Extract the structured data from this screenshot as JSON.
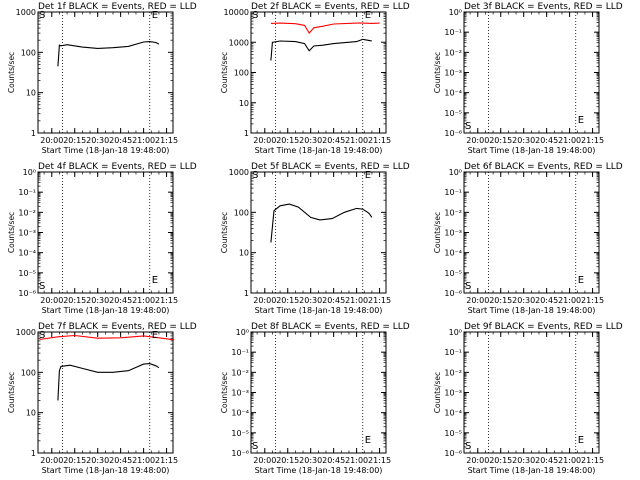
{
  "panel_layout": "3x3",
  "chart_data": [
    {
      "type": "line",
      "title": "Det 1f BLACK = Events, RED = LLD",
      "ylabel": "Counts/sec",
      "xlabel": "Start Time (18-Jan-18 19:48:00)",
      "yscale": "log",
      "ylim": [
        1,
        1000
      ],
      "xlim": [
        19.85,
        21.32
      ],
      "x_ticks": [
        "20:00",
        "20:15",
        "20:30",
        "20:45",
        "21:00",
        "21:15"
      ],
      "y_ticks": [
        "1",
        "10",
        "100",
        "1000"
      ],
      "grid": false,
      "vlines_dotted": [
        "20:07",
        "21:04"
      ],
      "markers": [
        "S",
        "E"
      ],
      "series": [
        {
          "color": "#000000",
          "x": [
            "20:04",
            "20:05",
            "20:06",
            "20:10",
            "20:20",
            "20:30",
            "20:40",
            "20:50",
            "21:00",
            "21:04",
            "21:08",
            "21:10"
          ],
          "y": [
            45,
            150,
            145,
            155,
            135,
            125,
            130,
            140,
            180,
            185,
            175,
            160
          ]
        }
      ]
    },
    {
      "type": "line",
      "title": "Det 2f BLACK = Events, RED = LLD",
      "ylabel": "Counts/sec",
      "xlabel": "Start Time (18-Jan-18 19:48:00)",
      "yscale": "log",
      "ylim": [
        1,
        10000
      ],
      "xlim": [
        19.85,
        21.32
      ],
      "x_ticks": [
        "20:00",
        "20:15",
        "20:30",
        "20:45",
        "21:00",
        "21:15"
      ],
      "y_ticks": [
        "1",
        "10",
        "100",
        "1000",
        "10000"
      ],
      "grid": false,
      "vlines_dotted": [
        "20:07",
        "21:04"
      ],
      "markers": [
        "S",
        "E"
      ],
      "series": [
        {
          "color": "#ff0000",
          "x": [
            "20:04",
            "20:10",
            "20:20",
            "20:26",
            "20:29",
            "20:32",
            "20:38",
            "20:45",
            "21:00",
            "21:04",
            "21:10",
            "21:15"
          ],
          "y": [
            4200,
            4300,
            4100,
            3600,
            2000,
            3000,
            3400,
            4000,
            4300,
            4300,
            4200,
            4300
          ]
        },
        {
          "color": "#000000",
          "x": [
            "20:04",
            "20:05",
            "20:10",
            "20:20",
            "20:26",
            "20:29",
            "20:32",
            "20:38",
            "20:45",
            "21:00",
            "21:04",
            "21:08",
            "21:10"
          ],
          "y": [
            250,
            1000,
            1100,
            1050,
            900,
            520,
            750,
            800,
            900,
            1050,
            1250,
            1150,
            1100
          ]
        }
      ]
    },
    {
      "type": "line",
      "title": "Det 3f BLACK = Events, RED = LLD",
      "ylabel": "Counts/sec",
      "xlabel": "Start Time (18-Jan-18 19:48:00)",
      "yscale": "log",
      "ylim": [
        1e-06,
        1
      ],
      "xlim": [
        19.85,
        21.32
      ],
      "x_ticks": [
        "20:00",
        "20:15",
        "20:30",
        "20:45",
        "21:00",
        "21:15"
      ],
      "y_ticks": [
        "10⁻⁶",
        "10⁻⁵",
        "10⁻⁴",
        "10⁻³",
        "10⁻²",
        "10⁻¹",
        "10⁰"
      ],
      "grid": false,
      "vlines_dotted": [
        "20:07",
        "21:04"
      ],
      "markers": [
        "S",
        "E"
      ],
      "series": []
    },
    {
      "type": "line",
      "title": "Det 4f BLACK = Events, RED = LLD",
      "ylabel": "Counts/sec",
      "xlabel": "Start Time (18-Jan-18 19:48:00)",
      "yscale": "log",
      "ylim": [
        1e-06,
        1
      ],
      "xlim": [
        19.85,
        21.32
      ],
      "x_ticks": [
        "20:00",
        "20:15",
        "20:30",
        "20:45",
        "21:00",
        "21:15"
      ],
      "y_ticks": [
        "10⁻⁶",
        "10⁻⁵",
        "10⁻⁴",
        "10⁻³",
        "10⁻²",
        "10⁻¹",
        "10⁰"
      ],
      "grid": false,
      "vlines_dotted": [
        "20:07",
        "21:04"
      ],
      "markers": [
        "S",
        "E"
      ],
      "series": []
    },
    {
      "type": "line",
      "title": "Det 5f BLACK = Events, RED = LLD",
      "ylabel": "Counts/sec",
      "xlabel": "Start Time (18-Jan-18 19:48:00)",
      "yscale": "log",
      "ylim": [
        1,
        1000
      ],
      "xlim": [
        19.85,
        21.32
      ],
      "x_ticks": [
        "20:00",
        "20:15",
        "20:30",
        "20:45",
        "21:00",
        "21:15"
      ],
      "y_ticks": [
        "1",
        "10",
        "100",
        "1000"
      ],
      "grid": false,
      "vlines_dotted": [
        "20:07",
        "21:04"
      ],
      "markers": [
        "S",
        "E"
      ],
      "series": [
        {
          "color": "#000000",
          "x": [
            "20:04",
            "20:06",
            "20:10",
            "20:16",
            "20:22",
            "20:30",
            "20:36",
            "20:44",
            "20:52",
            "21:00",
            "21:04",
            "21:08",
            "21:10"
          ],
          "y": [
            18,
            110,
            145,
            160,
            135,
            75,
            65,
            70,
            100,
            125,
            120,
            95,
            75
          ]
        }
      ]
    },
    {
      "type": "line",
      "title": "Det 6f BLACK = Events, RED = LLD",
      "ylabel": "Counts/sec",
      "xlabel": "Start Time (18-Jan-18 19:48:00)",
      "yscale": "log",
      "ylim": [
        1e-06,
        1
      ],
      "xlim": [
        19.85,
        21.32
      ],
      "x_ticks": [
        "20:00",
        "20:15",
        "20:30",
        "20:45",
        "21:00",
        "21:15"
      ],
      "y_ticks": [
        "10⁻⁶",
        "10⁻⁵",
        "10⁻⁴",
        "10⁻³",
        "10⁻²",
        "10⁻¹",
        "10⁰"
      ],
      "grid": false,
      "vlines_dotted": [
        "20:07",
        "21:04"
      ],
      "markers": [
        "S",
        "E"
      ],
      "series": []
    },
    {
      "type": "line",
      "title": "Det 7f BLACK = Events, RED = LLD",
      "ylabel": "Counts/sec",
      "xlabel": "Start Time (18-Jan-18 19:48:00)",
      "yscale": "log",
      "ylim": [
        1,
        1000
      ],
      "xlim": [
        19.85,
        21.32
      ],
      "x_ticks": [
        "20:00",
        "20:15",
        "20:30",
        "20:45",
        "21:00",
        "21:15"
      ],
      "y_ticks": [
        "1",
        "10",
        "100",
        "1000"
      ],
      "grid": false,
      "vlines_dotted": [
        "20:07",
        "21:04"
      ],
      "markers": [
        "S",
        "E"
      ],
      "series": [
        {
          "color": "#ff0000",
          "x": [
            "19:52",
            "20:04",
            "20:15",
            "20:30",
            "20:45",
            "21:00",
            "21:10",
            "21:20"
          ],
          "y": [
            650,
            760,
            820,
            700,
            720,
            800,
            720,
            640
          ]
        },
        {
          "color": "#000000",
          "x": [
            "20:04",
            "20:05",
            "20:06",
            "20:12",
            "20:20",
            "20:30",
            "20:40",
            "20:50",
            "21:00",
            "21:04",
            "21:08",
            "21:10"
          ],
          "y": [
            20,
            110,
            140,
            150,
            125,
            100,
            100,
            110,
            160,
            165,
            145,
            130
          ]
        }
      ]
    },
    {
      "type": "line",
      "title": "Det 8f BLACK = Events, RED = LLD",
      "ylabel": "Counts/sec",
      "xlabel": "Start Time (18-Jan-18 19:48:00)",
      "yscale": "log",
      "ylim": [
        1e-06,
        1
      ],
      "xlim": [
        19.85,
        21.32
      ],
      "x_ticks": [
        "20:00",
        "20:15",
        "20:30",
        "20:45",
        "21:00",
        "21:15"
      ],
      "y_ticks": [
        "10⁻⁶",
        "10⁻⁵",
        "10⁻⁴",
        "10⁻³",
        "10⁻²",
        "10⁻¹",
        "10⁰"
      ],
      "grid": false,
      "vlines_dotted": [
        "20:07",
        "21:04"
      ],
      "markers": [
        "S",
        "E"
      ],
      "series": []
    },
    {
      "type": "line",
      "title": "Det 9f BLACK = Events, RED = LLD",
      "ylabel": "Counts/sec",
      "xlabel": "Start Time (18-Jan-18 19:48:00)",
      "yscale": "log",
      "ylim": [
        1e-06,
        1
      ],
      "xlim": [
        19.85,
        21.32
      ],
      "x_ticks": [
        "20:00",
        "20:15",
        "20:30",
        "20:45",
        "21:00",
        "21:15"
      ],
      "y_ticks": [
        "10⁻⁶",
        "10⁻⁵",
        "10⁻⁴",
        "10⁻³",
        "10⁻²",
        "10⁻¹",
        "10⁰"
      ],
      "grid": false,
      "vlines_dotted": [
        "20:07",
        "21:04"
      ],
      "markers": [
        "S",
        "E"
      ],
      "series": []
    }
  ]
}
